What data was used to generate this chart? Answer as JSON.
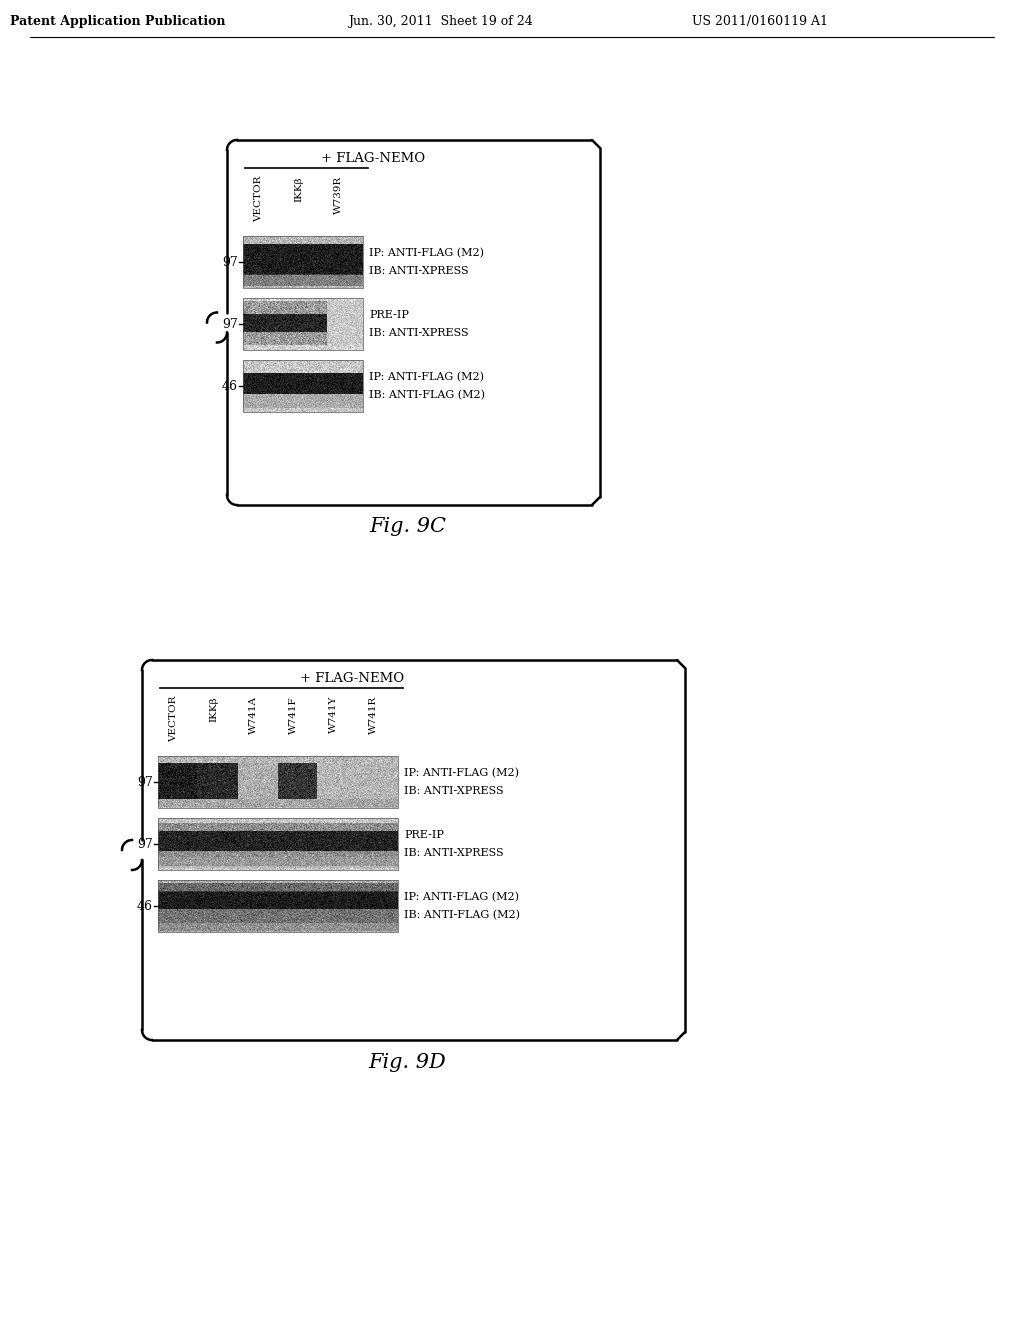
{
  "bg_color": "#ffffff",
  "header_left": "Patent Application Publication",
  "header_mid": "Jun. 30, 2011  Sheet 19 of 24",
  "header_right": "US 2011/0160119 A1",
  "fig9c": {
    "title": "+ FLAG-NEMO",
    "col_labels": [
      "VECTOR",
      "IKKβ",
      "W739R"
    ],
    "row_labels": [
      [
        "IP: ANTI-FLAG (M2)",
        "IB: ANTI-XPRESS"
      ],
      [
        "PRE-IP",
        "IB: ANTI-XPRESS"
      ],
      [
        "IP: ANTI-FLAG (M2)",
        "IB: ANTI-FLAG (M2)"
      ]
    ],
    "row_markers": [
      "97",
      "97",
      "46"
    ],
    "fig_label": "Fig. 9C"
  },
  "fig9d": {
    "title": "+ FLAG-NEMO",
    "col_labels": [
      "VECTOR",
      "IKKβ",
      "W741A",
      "W741F",
      "W741Y",
      "W741R"
    ],
    "row_labels": [
      [
        "IP: ANTI-FLAG (M2)",
        "IB: ANTI-XPRESS"
      ],
      [
        "PRE-IP",
        "IB: ANTI-XPRESS"
      ],
      [
        "IP: ANTI-FLAG (M2)",
        "IB: ANTI-FLAG (M2)"
      ]
    ],
    "row_markers": [
      "97",
      "97",
      "46"
    ],
    "fig_label": "Fig. 9D"
  }
}
